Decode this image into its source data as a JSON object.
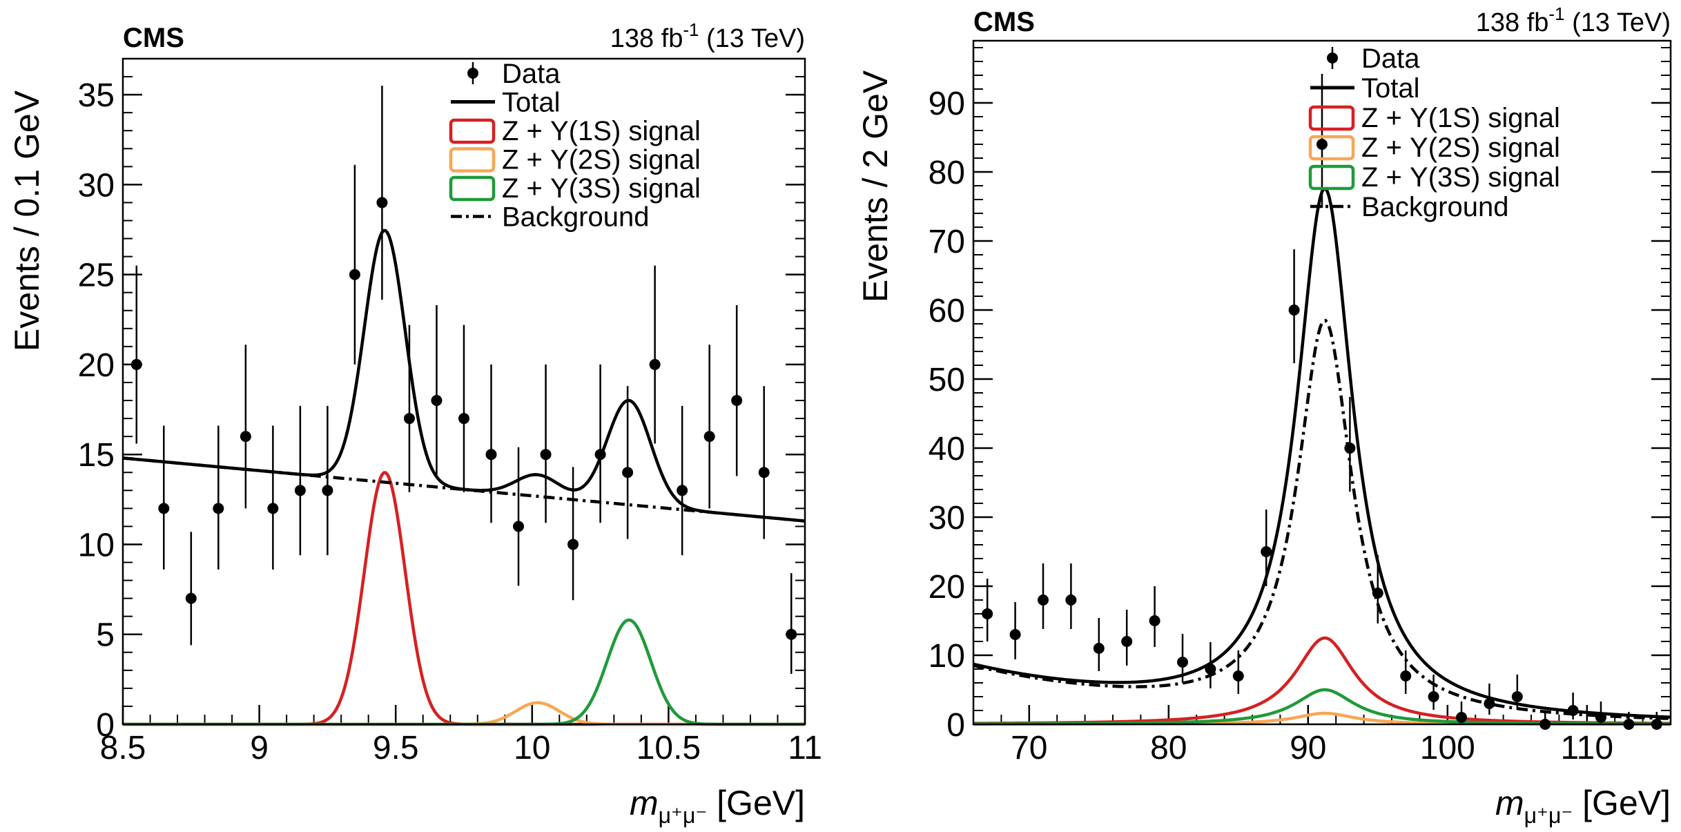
{
  "chart_data": [
    {
      "type": "line",
      "cms_label": "CMS",
      "lumi_value": "138 fb",
      "lumi_exponent": "-1",
      "lumi_energy": " (13 TeV)",
      "ylabel": "Events / 0.1 GeV",
      "xlabel_symbol": "m",
      "xlabel_subscript": "μ⁺μ⁻",
      "xlabel_unit": " [GeV]",
      "xlim": [
        8.5,
        11.0
      ],
      "ylim": [
        0,
        37
      ],
      "xticks": [
        8.5,
        9,
        9.5,
        10,
        10.5,
        11
      ],
      "xtick_labels": [
        "8.5",
        "9",
        "9.5",
        "10",
        "10.5",
        "11"
      ],
      "yticks": [
        0,
        5,
        10,
        15,
        20,
        25,
        30,
        35
      ],
      "ytick_labels": [
        "0",
        "5",
        "10",
        "15",
        "20",
        "25",
        "30",
        "35"
      ],
      "legend": {
        "position": "top-right",
        "entries": [
          {
            "label": "Data",
            "kind": "marker",
            "color": "#000000"
          },
          {
            "label": "Total",
            "kind": "line",
            "color": "#000000"
          },
          {
            "label": "Z + Υ(1S) signal",
            "kind": "box",
            "color": "#d62023"
          },
          {
            "label": "Z + Υ(2S) signal",
            "kind": "box",
            "color": "#f7a755"
          },
          {
            "label": "Z + Υ(3S) signal",
            "kind": "box",
            "color": "#1f9a3a"
          },
          {
            "label": "Background",
            "kind": "dashdot",
            "color": "#000000"
          }
        ]
      },
      "data": {
        "x": [
          8.55,
          8.65,
          8.75,
          8.85,
          8.95,
          9.05,
          9.15,
          9.25,
          9.35,
          9.45,
          9.55,
          9.65,
          9.75,
          9.85,
          9.95,
          10.05,
          10.15,
          10.25,
          10.35,
          10.45,
          10.55,
          10.65,
          10.75,
          10.85,
          10.95
        ],
        "y": [
          20,
          12,
          7,
          12,
          16,
          12,
          13,
          13,
          25,
          29,
          17,
          18,
          17,
          15,
          11,
          15,
          10,
          15,
          14,
          20,
          13,
          16,
          18,
          14,
          5
        ],
        "err_up": [
          5.5,
          4.6,
          3.7,
          4.6,
          5.1,
          4.6,
          4.7,
          4.7,
          6.1,
          6.5,
          5.2,
          5.3,
          5.2,
          5.0,
          4.4,
          5.0,
          4.3,
          5.0,
          4.8,
          5.5,
          4.7,
          5.1,
          5.3,
          4.8,
          3.4
        ],
        "err_down": [
          4.4,
          3.4,
          2.6,
          3.4,
          4.0,
          3.4,
          3.6,
          3.6,
          5.0,
          5.4,
          4.1,
          4.2,
          4.1,
          3.8,
          3.3,
          3.8,
          3.1,
          3.8,
          3.7,
          4.4,
          3.6,
          4.0,
          4.2,
          3.7,
          2.2
        ]
      },
      "model": {
        "background": {
          "kind": "linear",
          "x": [
            8.5,
            11.0
          ],
          "y": [
            14.8,
            11.3
          ]
        },
        "signals": [
          {
            "name": "Z + Υ(1S) signal",
            "mean": 9.46,
            "sigma": 0.075,
            "peak": 14.0,
            "color": "#d62023"
          },
          {
            "name": "Z + Υ(2S) signal",
            "mean": 10.02,
            "sigma": 0.08,
            "peak": 1.2,
            "color": "#f7a755"
          },
          {
            "name": "Z + Υ(3S) signal",
            "mean": 10.355,
            "sigma": 0.08,
            "peak": 5.8,
            "color": "#1f9a3a"
          }
        ],
        "curve_xrange": [
          8.5,
          11.0
        ]
      }
    },
    {
      "type": "line",
      "cms_label": "CMS",
      "lumi_value": "138 fb",
      "lumi_exponent": "-1",
      "lumi_energy": " (13 TeV)",
      "ylabel": "Events / 2 GeV",
      "xlabel_symbol": "m",
      "xlabel_subscript": "μ⁺μ⁻",
      "xlabel_unit": " [GeV]",
      "xlim": [
        66,
        116
      ],
      "ylim": [
        0,
        99
      ],
      "xticks": [
        70,
        80,
        90,
        100,
        110
      ],
      "xtick_labels": [
        "70",
        "80",
        "90",
        "100",
        "110"
      ],
      "yticks": [
        0,
        10,
        20,
        30,
        40,
        50,
        60,
        70,
        80,
        90
      ],
      "ytick_labels": [
        "0",
        "10",
        "20",
        "30",
        "40",
        "50",
        "60",
        "70",
        "80",
        "90"
      ],
      "legend": {
        "position": "top-right",
        "entries": [
          {
            "label": "Data",
            "kind": "marker",
            "color": "#000000"
          },
          {
            "label": "Total",
            "kind": "line",
            "color": "#000000"
          },
          {
            "label": "Z + Υ(1S) signal",
            "kind": "box",
            "color": "#d62023"
          },
          {
            "label": "Z + Υ(2S) signal",
            "kind": "box",
            "color": "#f7a755"
          },
          {
            "label": "Z + Υ(3S) signal",
            "kind": "box",
            "color": "#1f9a3a"
          },
          {
            "label": "Background",
            "kind": "dashdot",
            "color": "#000000"
          }
        ]
      },
      "data": {
        "x": [
          67,
          69,
          71,
          73,
          75,
          77,
          79,
          81,
          83,
          85,
          87,
          89,
          91,
          93,
          95,
          97,
          99,
          101,
          103,
          105,
          107,
          109,
          111,
          113,
          115
        ],
        "y": [
          16,
          13,
          18,
          18,
          11,
          12,
          15,
          9,
          8,
          7,
          25,
          60,
          84,
          40,
          19,
          7,
          4,
          1,
          3,
          4,
          0,
          2,
          1,
          0,
          0
        ],
        "err_up": [
          5.1,
          4.7,
          5.3,
          5.3,
          4.4,
          4.6,
          5.0,
          4.1,
          3.9,
          3.7,
          6.1,
          8.8,
          10.2,
          7.4,
          5.5,
          3.7,
          3.2,
          2.3,
          2.9,
          3.2,
          1.8,
          2.6,
          2.3,
          1.8,
          1.8
        ],
        "err_down": [
          4.0,
          3.6,
          4.2,
          4.2,
          3.3,
          3.5,
          3.8,
          3.0,
          2.8,
          2.6,
          5.0,
          7.7,
          9.2,
          6.3,
          4.4,
          2.6,
          1.9,
          0.8,
          1.6,
          1.9,
          0.0,
          1.3,
          0.8,
          0.0,
          0.0
        ]
      },
      "model": {
        "background": {
          "kind": "breit-wigner",
          "mass": 91.2,
          "half_width": 2.4,
          "peak": 57.0,
          "continuum_a": 8.0,
          "continuum_b": -0.066,
          "continuum_x0": 66
        },
        "signals": [
          {
            "name": "Z + Υ(1S) signal",
            "mean": 91.2,
            "half_width": 2.6,
            "peak": 12.5,
            "color": "#d62023"
          },
          {
            "name": "Z + Υ(2S) signal",
            "mean": 91.2,
            "half_width": 2.6,
            "peak": 1.6,
            "color": "#f7a755"
          },
          {
            "name": "Z + Υ(3S) signal",
            "mean": 91.2,
            "half_width": 2.6,
            "peak": 5.0,
            "color": "#1f9a3a"
          }
        ],
        "curve_xrange": [
          66,
          116
        ]
      }
    }
  ]
}
